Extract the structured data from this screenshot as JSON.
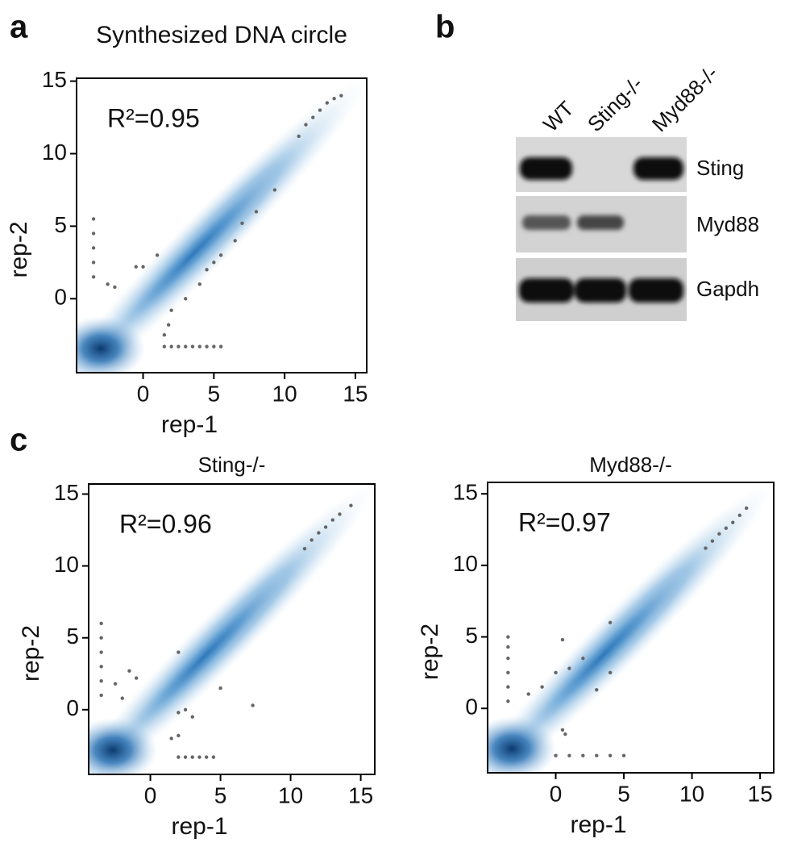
{
  "panel_labels": [
    "a",
    "b",
    "c"
  ],
  "chart_data": [
    {
      "type": "scatter",
      "title": "Synthesized DNA circle",
      "annotation": "R²=0.95",
      "x_label": "rep-1",
      "y_label": "rep-2",
      "xlim": [
        -4.7,
        15.8
      ],
      "ylim": [
        -5.1,
        15.2
      ],
      "xticks": [
        0,
        5,
        10,
        15
      ],
      "yticks": [
        0,
        5,
        10,
        15
      ],
      "color": "#666666",
      "x": [
        11,
        11.5,
        12,
        12.5,
        13,
        13.5,
        14,
        9.3,
        8,
        7,
        6.5,
        5.5,
        5,
        4.5,
        4,
        3,
        2,
        1.8,
        1.5,
        -3.5,
        -3.5,
        -3.5,
        -3.5,
        -3.5,
        -2.5,
        -2,
        -0.5,
        0,
        1,
        1.5,
        2,
        2.5,
        3,
        3.5,
        4,
        4.5,
        5,
        5.5
      ],
      "y": [
        11.2,
        12,
        12.5,
        13,
        13.5,
        13.8,
        14,
        7.5,
        6,
        5.2,
        4,
        3,
        2.5,
        2,
        1,
        0,
        -0.8,
        -1.8,
        -2.5,
        1.5,
        2.5,
        3.5,
        4.5,
        5.5,
        1,
        0.8,
        2.2,
        2.2,
        3,
        -3.3,
        -3.3,
        -3.3,
        -3.3,
        -3.3,
        -3.3,
        -3.3,
        -3.3,
        -3.3
      ]
    },
    {
      "type": "scatter",
      "title": "Sting-/-",
      "annotation": "R²=0.96",
      "x_label": "rep-1",
      "y_label": "rep-2",
      "xlim": [
        -4.4,
        16
      ],
      "ylim": [
        -4.5,
        15.7
      ],
      "xticks": [
        0,
        5,
        10,
        15
      ],
      "yticks": [
        0,
        5,
        10,
        15
      ],
      "color": "#666666",
      "x": [
        11,
        11.5,
        12,
        12.5,
        13,
        13.5,
        14.3,
        -3.5,
        -3.5,
        -3.5,
        -3.5,
        -3.5,
        -3.5,
        -1.5,
        -1,
        -2.5,
        -2,
        2,
        5,
        7.3,
        2,
        3,
        2.5,
        1.5,
        2,
        2,
        2.5,
        3,
        3.5,
        4,
        4.5
      ],
      "y": [
        11.2,
        11.8,
        12.3,
        12.7,
        13.2,
        13.6,
        14.2,
        1,
        2,
        3,
        4,
        5,
        6,
        2.7,
        2.2,
        1.8,
        0.8,
        4,
        1.5,
        0.3,
        -0.2,
        -0.5,
        0,
        -2,
        -1.8,
        -3.3,
        -3.3,
        -3.3,
        -3.3,
        -3.3,
        -3.3
      ]
    },
    {
      "type": "scatter",
      "title": "Myd88-/-",
      "annotation": "R²=0.97",
      "x_label": "rep-1",
      "y_label": "rep-2",
      "xlim": [
        -5,
        16
      ],
      "ylim": [
        -4.5,
        15.8
      ],
      "xticks": [
        0,
        5,
        10,
        15
      ],
      "yticks": [
        0,
        5,
        10,
        15
      ],
      "color": "#666666",
      "x": [
        11,
        11.5,
        12,
        12.5,
        13,
        13.5,
        14,
        -3.5,
        -3.5,
        -3.5,
        -3.5,
        -3.5,
        -3.5,
        -2,
        -1,
        0,
        0.5,
        1,
        2,
        4,
        3,
        4,
        0.5,
        0.7,
        0,
        1,
        2,
        3,
        4,
        5
      ],
      "y": [
        11.2,
        11.7,
        12.2,
        12.6,
        13,
        13.5,
        14,
        0.5,
        1.5,
        2.5,
        3.5,
        4.3,
        5,
        1,
        1.5,
        2.5,
        4.8,
        2.8,
        3.5,
        6,
        1.3,
        2.5,
        -1.5,
        -1.8,
        -3.3,
        -3.3,
        -3.3,
        -3.3,
        -3.3,
        -3.3
      ]
    }
  ],
  "blot": {
    "lanes": [
      "WT",
      "Sting-/-",
      "Myd88-/-"
    ],
    "rows": [
      "Sting",
      "Myd88",
      "Gapdh"
    ]
  }
}
